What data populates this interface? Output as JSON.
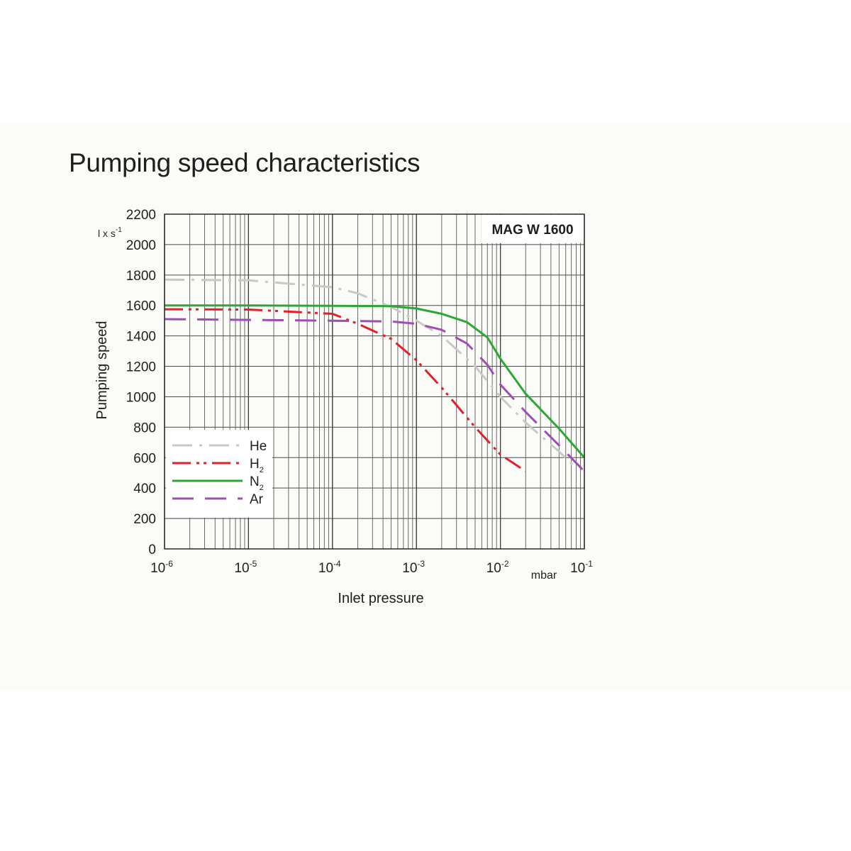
{
  "page": {
    "title": "Pumping speed characteristics"
  },
  "chart_data": {
    "type": "line",
    "title": "Pumping speed characteristics",
    "model_label": "MAG W 1600",
    "xlabel": "Inlet pressure",
    "x_unit": "mbar",
    "ylabel": "Pumping speed",
    "y_unit": "l x s-1",
    "x_scale": "log",
    "xlim": [
      1e-06,
      0.1
    ],
    "ylim": [
      0,
      2200
    ],
    "grid": true,
    "legend_position": "bottom-left",
    "x_ticks": [
      {
        "value": 1e-06,
        "base": "10",
        "exp": "-6"
      },
      {
        "value": 1e-05,
        "base": "10",
        "exp": "-5"
      },
      {
        "value": 0.0001,
        "base": "10",
        "exp": "-4"
      },
      {
        "value": 0.001,
        "base": "10",
        "exp": "-3"
      },
      {
        "value": 0.01,
        "base": "10",
        "exp": "-2"
      },
      {
        "value": 0.1,
        "base": "10",
        "exp": "-1"
      }
    ],
    "y_ticks": [
      0,
      200,
      400,
      600,
      800,
      1000,
      1200,
      1400,
      1600,
      1800,
      2000,
      2200
    ],
    "series": [
      {
        "name": "He",
        "sub": "",
        "color": "#c8c8c8",
        "dash": "28 10 4 10",
        "x": [
          1e-06,
          1e-05,
          0.0001,
          0.0002,
          0.0005,
          0.001,
          0.002,
          0.005,
          0.01,
          0.02,
          0.05,
          0.08
        ],
        "y": [
          1770,
          1765,
          1720,
          1680,
          1590,
          1500,
          1400,
          1200,
          1000,
          830,
          640,
          530
        ]
      },
      {
        "name": "H",
        "sub": "2",
        "color": "#e0202a",
        "dash": "26 8 4 6 4 8",
        "x": [
          1e-06,
          1e-05,
          0.0001,
          0.0002,
          0.0005,
          0.001,
          0.002,
          0.005,
          0.01,
          0.02
        ],
        "y": [
          1575,
          1573,
          1545,
          1480,
          1380,
          1240,
          1060,
          800,
          620,
          510
        ]
      },
      {
        "name": "N",
        "sub": "2",
        "color": "#2aa833",
        "dash": "",
        "x": [
          1e-06,
          1e-05,
          0.0001,
          0.0005,
          0.001,
          0.002,
          0.004,
          0.007,
          0.01,
          0.02,
          0.05,
          0.1
        ],
        "y": [
          1600,
          1600,
          1598,
          1595,
          1580,
          1545,
          1490,
          1390,
          1250,
          1020,
          790,
          600
        ]
      },
      {
        "name": "Ar",
        "sub": "",
        "color": "#a14bb4",
        "dash": "30 16",
        "x": [
          1e-06,
          1e-05,
          0.0001,
          0.0005,
          0.001,
          0.002,
          0.004,
          0.007,
          0.01,
          0.02,
          0.05,
          0.1
        ],
        "y": [
          1510,
          1505,
          1500,
          1495,
          1480,
          1440,
          1350,
          1210,
          1080,
          900,
          680,
          510
        ]
      }
    ]
  }
}
